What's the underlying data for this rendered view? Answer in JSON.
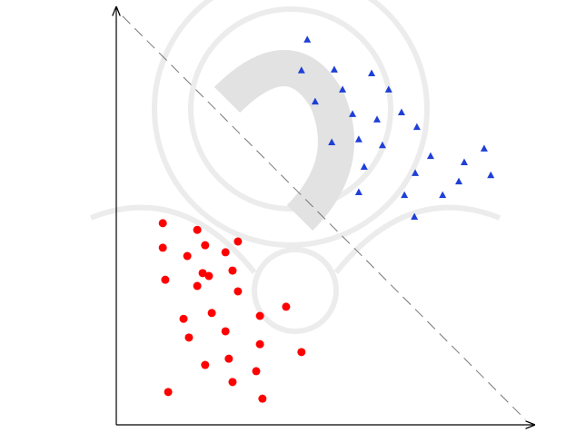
{
  "chart_data": {
    "type": "scatter",
    "xlim": [
      0,
      100
    ],
    "ylim": [
      0,
      100
    ],
    "boundary": {
      "x": [
        1.5,
        98.5
      ],
      "y": [
        98.3,
        1.3
      ]
    },
    "series": [
      {
        "color": "#ff0000",
        "marker": "circle",
        "x": [
          11.2,
          19.5,
          11.2,
          21.4,
          29.3,
          17.1,
          26.3,
          20.8,
          22.3,
          28.0,
          11.8,
          19.5,
          29.3,
          40.9,
          23.0,
          16.2,
          34.6,
          26.3,
          17.5,
          34.6,
          44.6,
          21.4,
          27.1,
          33.7,
          28.0,
          12.5,
          35.2
        ],
        "values": [
          48.5,
          46.9,
          42.6,
          43.2,
          44.1,
          40.6,
          41.5,
          36.5,
          35.8,
          37.1,
          34.9,
          33.4,
          32.1,
          28.4,
          26.9,
          25.5,
          26.2,
          22.5,
          21.0,
          19.4,
          17.5,
          14.4,
          15.9,
          12.9,
          10.3,
          7.9,
          6.3
        ]
      },
      {
        "color": "#1f3fd6",
        "marker": "triangle",
        "x": [
          46.0,
          44.6,
          52.5,
          61.5,
          54.5,
          65.6,
          47.9,
          56.9,
          62.8,
          68.7,
          72.4,
          51.9,
          58.4,
          64.1,
          75.7,
          59.7,
          72.0,
          83.8,
          88.6,
          90.2,
          82.5,
          58.4,
          69.4,
          78.6,
          71.8
        ],
        "values": [
          92.6,
          85.2,
          85.4,
          84.5,
          80.6,
          80.6,
          77.7,
          74.7,
          73.4,
          75.1,
          71.6,
          67.9,
          68.6,
          67.2,
          64.6,
          62.0,
          60.5,
          63.1,
          66.4,
          60.0,
          58.5,
          55.9,
          55.2,
          55.2,
          50.0
        ]
      }
    ]
  }
}
